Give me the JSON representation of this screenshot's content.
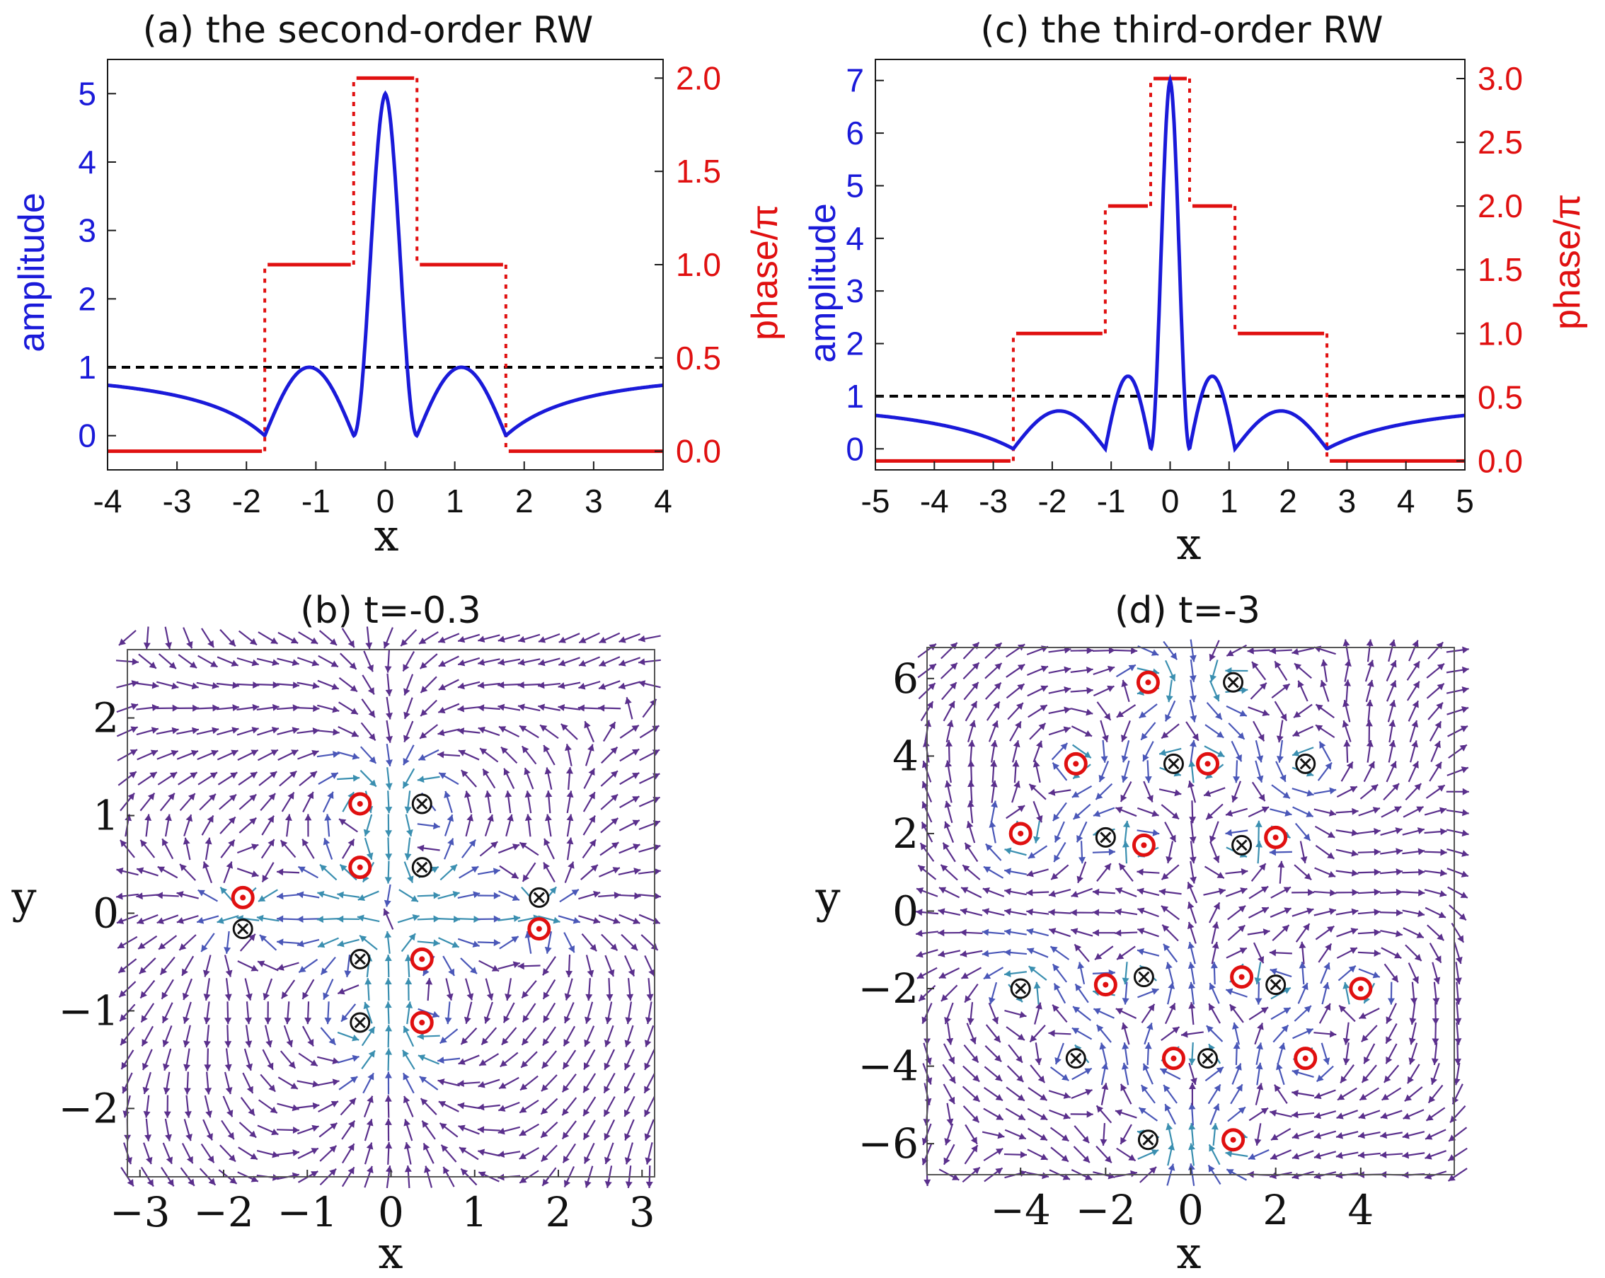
{
  "chart_data": [
    {
      "panel": "a",
      "type": "line",
      "title": "(a) the second-order RW",
      "xlabel": "x",
      "ylabel_left": "amplitude",
      "ylabel_right": "phase/π",
      "xlim": [
        -4,
        4
      ],
      "ylim_left": [
        -0.5,
        5.5
      ],
      "ylim_right": [
        -0.1,
        2.1
      ],
      "x_ticks": [
        -4,
        -3,
        -2,
        -1,
        0,
        1,
        2,
        3,
        4
      ],
      "y_left_ticks": [
        0,
        1,
        2,
        3,
        4,
        5
      ],
      "y_right_ticks": [
        "0.0",
        "0.5",
        "1.0",
        "1.5",
        "2.0"
      ],
      "series": [
        {
          "name": "amplitude",
          "color": "#1a1ad9",
          "style": "solid",
          "order": 2
        },
        {
          "name": "phase",
          "color": "#e01010",
          "style": "steps",
          "zeros": [
            -1.736,
            -0.456,
            0.456,
            1.736
          ],
          "levels": [
            0,
            1,
            2,
            1,
            0
          ]
        },
        {
          "name": "background",
          "color": "#000000",
          "style": "dashed",
          "value": 1
        }
      ]
    },
    {
      "panel": "c",
      "type": "line",
      "title": "(c) the third-order RW",
      "xlabel": "x",
      "ylabel_left": "amplitude",
      "ylabel_right": "phase/π",
      "xlim": [
        -5,
        5
      ],
      "ylim_left": [
        -0.4,
        7.4
      ],
      "ylim_right": [
        -0.07,
        3.15
      ],
      "x_ticks": [
        -5,
        -4,
        -3,
        -2,
        -1,
        0,
        1,
        2,
        3,
        4,
        5
      ],
      "y_left_ticks": [
        0,
        1,
        2,
        3,
        4,
        5,
        6,
        7
      ],
      "y_right_ticks": [
        "0.0",
        "0.5",
        "1.0",
        "1.5",
        "2.0",
        "2.5",
        "3.0"
      ],
      "series": [
        {
          "name": "amplitude",
          "color": "#1a1ad9",
          "style": "solid",
          "order": 3
        },
        {
          "name": "phase",
          "color": "#e01010",
          "style": "steps",
          "zeros": [
            -2.66,
            -1.1,
            -0.33,
            0.33,
            1.1,
            2.66
          ],
          "levels": [
            0,
            1,
            2,
            3,
            2,
            1,
            0
          ]
        },
        {
          "name": "background",
          "color": "#000000",
          "style": "dashed",
          "value": 1
        }
      ]
    },
    {
      "panel": "b",
      "type": "vector-field",
      "title": "(b)  t=-0.3",
      "xlabel": "x",
      "ylabel": "y",
      "xlim": [
        -3.15,
        3.15
      ],
      "ylim": [
        -2.7,
        2.7
      ],
      "x_ticks": [
        "−3",
        "−2",
        "−1",
        "0",
        "1",
        "2",
        "3"
      ],
      "y_ticks": [
        "−2",
        "−1",
        "0",
        "1",
        "2"
      ],
      "defects_in": [
        [
          0.37,
          1.12
        ],
        [
          0.37,
          0.47
        ],
        [
          1.77,
          0.16
        ],
        [
          -1.77,
          -0.16
        ],
        [
          -0.37,
          -0.47
        ],
        [
          -0.37,
          -1.12
        ]
      ],
      "defects_out": [
        [
          -0.37,
          1.12
        ],
        [
          -0.37,
          0.47
        ],
        [
          -1.77,
          0.16
        ],
        [
          1.77,
          -0.16
        ],
        [
          0.37,
          -0.47
        ],
        [
          0.37,
          -1.12
        ]
      ]
    },
    {
      "panel": "d",
      "type": "vector-field",
      "title": "(d)  t=-3",
      "xlabel": "x",
      "ylabel": "y",
      "xlim": [
        -6.2,
        6.2
      ],
      "ylim": [
        -6.8,
        6.8
      ],
      "x_ticks": [
        "−4",
        "−2",
        "0",
        "2",
        "4"
      ],
      "y_ticks": [
        "6",
        "4",
        "2",
        "0",
        "−2",
        "−4",
        "−6"
      ],
      "defects_in": [
        [
          1.0,
          5.9
        ],
        [
          -0.4,
          3.8
        ],
        [
          2.7,
          3.8
        ],
        [
          -2.0,
          1.9
        ],
        [
          1.2,
          1.7
        ],
        [
          -1.1,
          -1.7
        ],
        [
          2.0,
          -1.9
        ],
        [
          -4.0,
          -2.0
        ],
        [
          -2.7,
          -3.8
        ],
        [
          0.4,
          -3.8
        ],
        [
          -1.0,
          -5.9
        ]
      ],
      "defects_out": [
        [
          -1.0,
          5.9
        ],
        [
          -2.7,
          3.8
        ],
        [
          0.4,
          3.8
        ],
        [
          -4.0,
          2.0
        ],
        [
          -1.1,
          1.7
        ],
        [
          2.0,
          1.9
        ],
        [
          -2.0,
          -1.9
        ],
        [
          1.2,
          -1.7
        ],
        [
          4.0,
          -2.0
        ],
        [
          -0.4,
          -3.8
        ],
        [
          2.7,
          -3.8
        ],
        [
          1.0,
          -5.9
        ]
      ]
    }
  ]
}
